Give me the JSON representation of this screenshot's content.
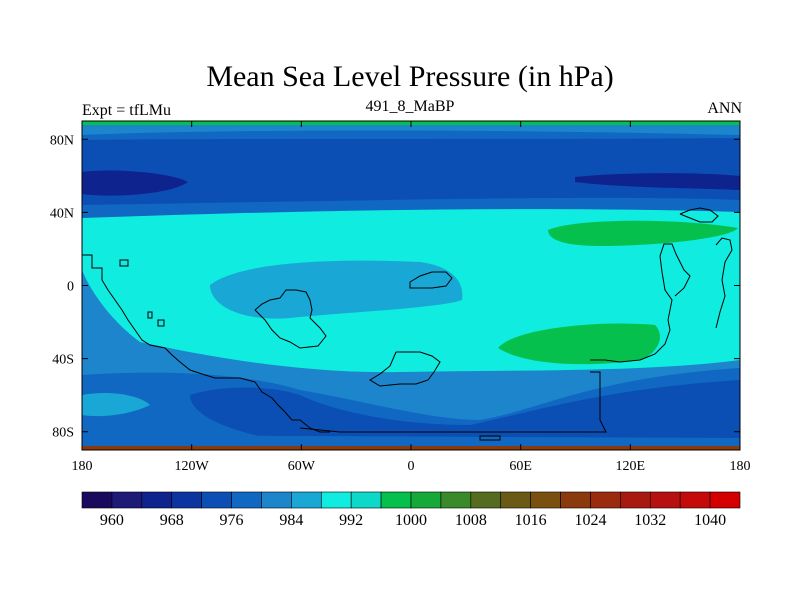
{
  "chart_data": {
    "type": "heatmap",
    "title": "Mean Sea Level Pressure (in hPa)",
    "subtitle_left": "Expt = tfLMu",
    "subtitle_center": "491_8_MaBP",
    "subtitle_right": "ANN",
    "x_ticks": [
      "180",
      "120W",
      "60W",
      "0",
      "60E",
      "120E",
      "180"
    ],
    "y_ticks": [
      "80N",
      "40N",
      "0",
      "40S",
      "80S"
    ],
    "xlim": [
      -180,
      180
    ],
    "ylim": [
      -90,
      90
    ],
    "colorbar_labels": [
      "960",
      "968",
      "976",
      "984",
      "992",
      "1000",
      "1008",
      "1016",
      "1024",
      "1032",
      "1040"
    ],
    "colorbar_colors": [
      "#1a0a5e",
      "#1d1a78",
      "#0f238f",
      "#0b34a1",
      "#0c4fb4",
      "#1068c2",
      "#1c85cc",
      "#19a7d6",
      "#10ecdf",
      "#0ed9c9",
      "#06c04e",
      "#16a93a",
      "#3a8a2a",
      "#556b1f",
      "#6a5a16",
      "#7a5010",
      "#8b3a0e",
      "#9a2b0e",
      "#a81a10",
      "#b71010",
      "#c50a0a",
      "#d40000"
    ],
    "fields": {
      "ocean_low_sh": "#0c4fb4",
      "midlat_low": "#1068c2",
      "subpolar_low": "#0b34a1",
      "deep_low": "#0f238f",
      "tropics": "#10ecdf",
      "tropics_alt": "#19a7d6",
      "high": "#06c04e"
    }
  }
}
